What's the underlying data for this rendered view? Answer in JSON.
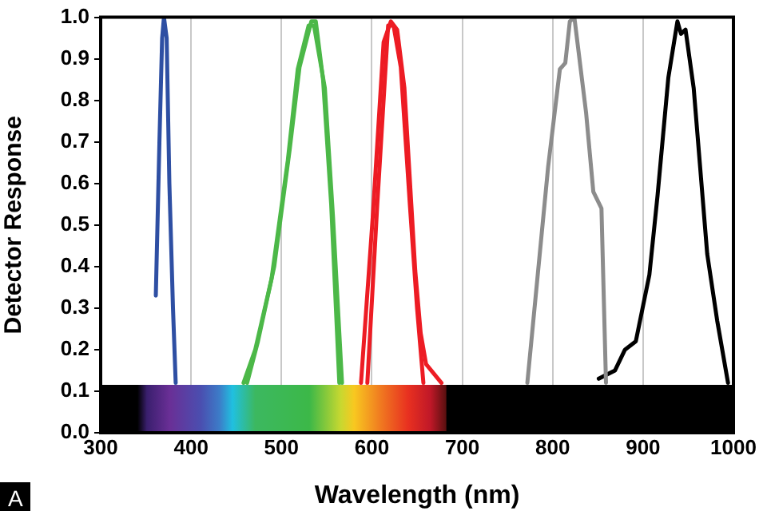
{
  "chart_data": {
    "type": "line",
    "xlabel": "Wavelength (nm)",
    "ylabel": "Detector Response",
    "xlim": [
      300,
      1000
    ],
    "xticks": [
      300,
      400,
      500,
      600,
      700,
      800,
      900,
      1000
    ],
    "ylim": [
      0,
      1
    ],
    "yticks": [
      {
        "value": 0,
        "label": "0.0"
      },
      0.1,
      0.2,
      0.3,
      0.4,
      0.5,
      0.6,
      0.7,
      0.8,
      0.9,
      {
        "value": 1,
        "label": "1.0"
      }
    ],
    "grid": "x",
    "legend": false,
    "marker": "none",
    "line_style": "solid",
    "annotations": [
      "A"
    ],
    "series": [
      {
        "color": "#2e4fa3",
        "x": [
          361,
          365,
          368,
          370,
          373,
          376,
          380,
          383
        ],
        "values": [
          0.33,
          0.7,
          0.95,
          1.0,
          0.95,
          0.6,
          0.3,
          0.12
        ]
      },
      {
        "color": "#4cb848",
        "x": [
          458,
          471,
          489,
          507,
          518,
          530,
          536,
          548,
          557,
          567
        ],
        "values": [
          0.12,
          0.2,
          0.37,
          0.655,
          0.875,
          0.98,
          0.98,
          0.83,
          0.52,
          0.12
        ]
      },
      {
        "color": "#4cb848",
        "x": [
          462,
          474,
          492,
          509,
          520,
          533,
          538,
          546,
          555,
          564
        ],
        "values": [
          0.12,
          0.22,
          0.4,
          0.68,
          0.88,
          0.99,
          0.99,
          0.85,
          0.55,
          0.12
        ]
      },
      {
        "color": "#ed1c24",
        "x": [
          588,
          601,
          613,
          621,
          628,
          636,
          648,
          654,
          660,
          677
        ],
        "values": [
          0.12,
          0.52,
          0.94,
          0.99,
          0.97,
          0.83,
          0.39,
          0.24,
          0.165,
          0.12
        ]
      },
      {
        "color": "#ed1c24",
        "x": [
          595,
          606,
          618,
          624,
          632,
          642,
          650,
          657
        ],
        "values": [
          0.12,
          0.55,
          0.98,
          0.98,
          0.88,
          0.55,
          0.3,
          0.12
        ]
      },
      {
        "color": "#8c8c8c",
        "x": [
          772,
          795,
          808,
          814,
          819,
          824,
          837,
          845,
          854,
          859
        ],
        "values": [
          0.12,
          0.64,
          0.875,
          0.89,
          0.99,
          1.0,
          0.77,
          0.58,
          0.54,
          0.12
        ]
      },
      {
        "color": "#000000",
        "x": [
          851,
          869,
          880,
          892,
          907,
          916,
          928,
          938,
          942,
          947,
          956,
          971,
          982,
          994
        ],
        "values": [
          0.13,
          0.15,
          0.2,
          0.22,
          0.38,
          0.57,
          0.855,
          0.99,
          0.96,
          0.97,
          0.83,
          0.43,
          0.27,
          0.12
        ]
      }
    ]
  }
}
